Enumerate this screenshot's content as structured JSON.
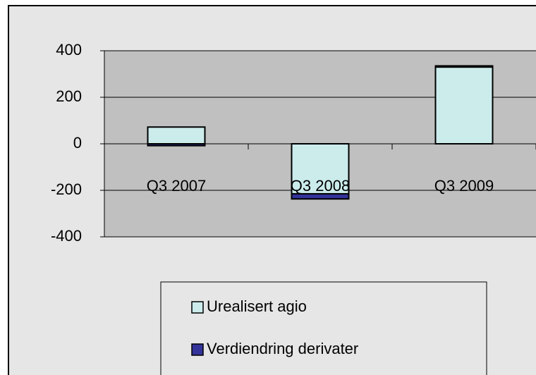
{
  "chart_data": {
    "type": "stacked_bar",
    "categories": [
      "Q3 2007",
      "Q3 2008",
      "Q3 2009"
    ],
    "series": [
      {
        "name": "Urealisert agio",
        "color": "#ccecec",
        "values": [
          72,
          -215,
          330
        ]
      },
      {
        "name": "Verdiendring derivater",
        "color": "#333399",
        "values": [
          -8,
          -22,
          5
        ]
      }
    ],
    "ylim": [
      -400,
      400
    ],
    "yticks": [
      -400,
      -200,
      0,
      200,
      400
    ],
    "grid": true
  }
}
